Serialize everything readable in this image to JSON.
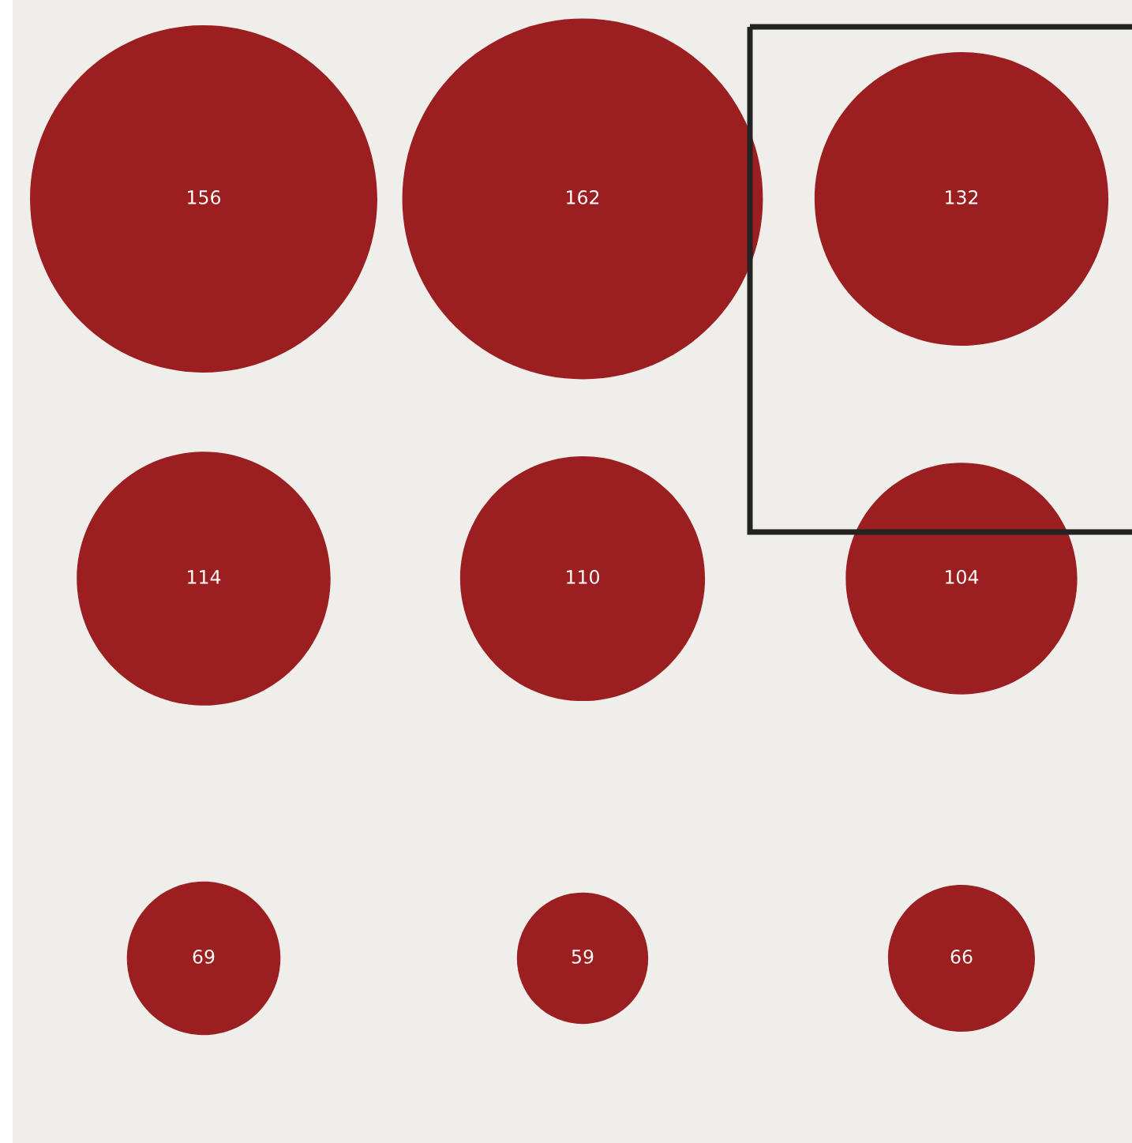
{
  "chart_data": {
    "type": "other",
    "categories": [
      null,
      null,
      null,
      null,
      null,
      null,
      null,
      null,
      null
    ],
    "values": [
      156,
      162,
      132,
      114,
      110,
      104,
      69,
      59,
      66
    ],
    "color": "#9b1e20",
    "data_labels": true
  }
}
